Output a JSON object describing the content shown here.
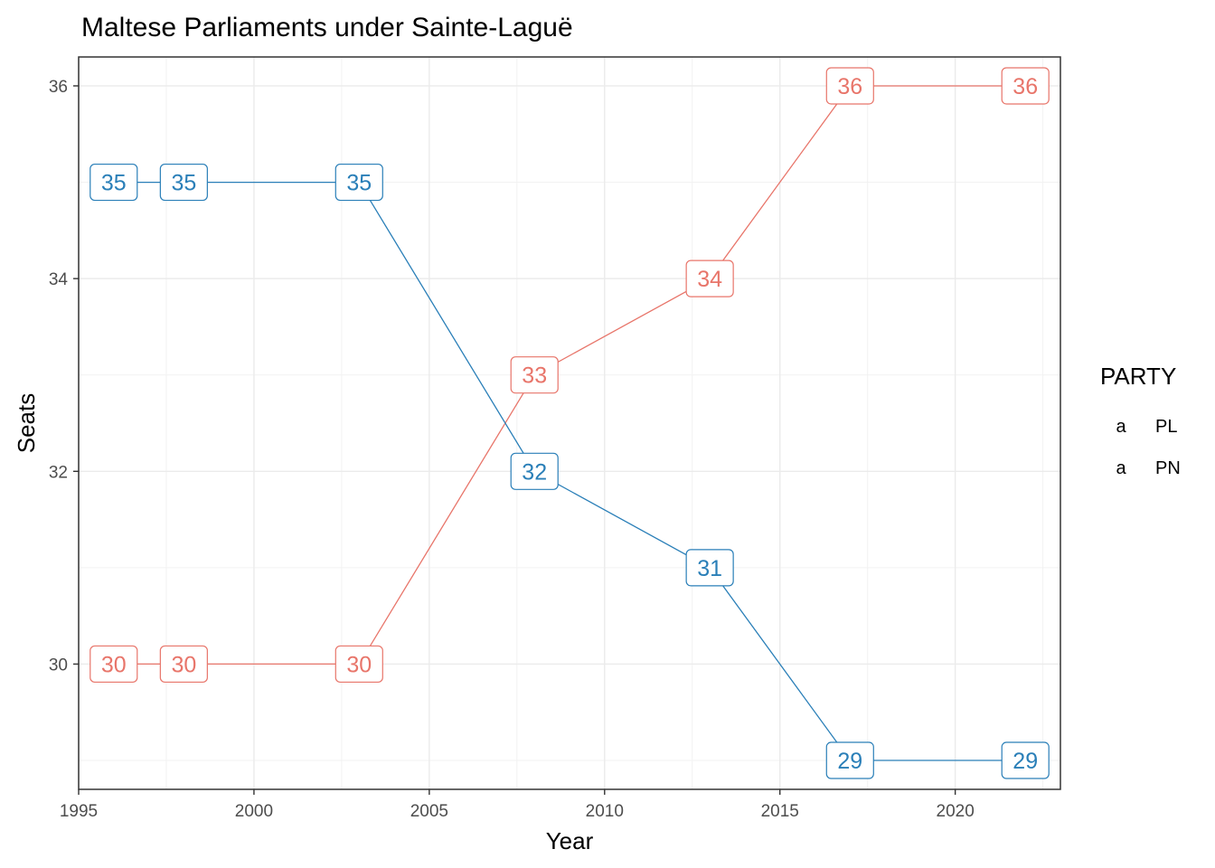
{
  "chart_data": {
    "type": "line",
    "title": "Maltese Parliaments under Sainte-Laguë",
    "xlabel": "Year",
    "ylabel": "Seats",
    "x": [
      1996,
      1998,
      2003,
      2008,
      2013,
      2017,
      2022
    ],
    "xlim": [
      1995,
      2023
    ],
    "ylim": [
      28.7,
      36.3
    ],
    "x_ticks": [
      1995,
      2000,
      2005,
      2010,
      2015,
      2020
    ],
    "y_ticks": [
      30,
      32,
      34,
      36
    ],
    "grid": true,
    "legend": {
      "title": "PARTY",
      "position": "right",
      "key_glyph": "a"
    },
    "series": [
      {
        "name": "PL",
        "color": "#E8756A",
        "values": [
          30,
          30,
          30,
          33,
          34,
          36,
          36
        ]
      },
      {
        "name": "PN",
        "color": "#2A7FB8",
        "values": [
          35,
          35,
          35,
          32,
          31,
          29,
          29
        ]
      }
    ]
  }
}
